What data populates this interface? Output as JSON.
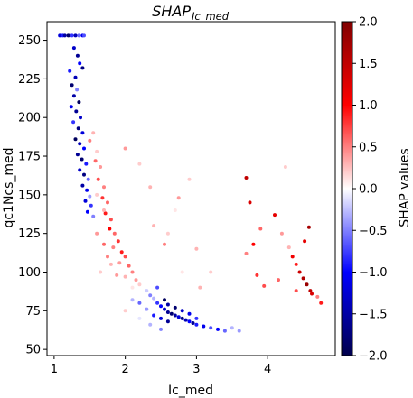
{
  "chart_data": {
    "type": "scatter",
    "title": "SHAP",
    "title_subscript": "Ic_med",
    "xlabel": "Ic_med",
    "ylabel": "qc1Ncs_med",
    "xlim": [
      0.9,
      4.95
    ],
    "ylim": [
      46,
      262
    ],
    "xticks": [
      1,
      2,
      3,
      4
    ],
    "yticks": [
      50,
      75,
      100,
      125,
      150,
      175,
      200,
      225,
      250
    ],
    "grid": false,
    "colorbar": {
      "label": "SHAP values",
      "range": [
        -2.0,
        2.0
      ],
      "ticks": [
        2.0,
        1.5,
        1.0,
        0.5,
        0.0,
        -0.5,
        -1.0,
        -1.5,
        -2.0
      ],
      "tick_labels": [
        "2.0",
        "1.5",
        "1.0",
        "0.5",
        "0.0",
        "−0.5",
        "−1.0",
        "−1.5",
        "−2.0"
      ],
      "colormap": "seismic",
      "colors": [
        "#00004c",
        "#0000ff",
        "#ffffff",
        "#ff0000",
        "#800000"
      ]
    },
    "point_count_note": "dense point cloud; representative points below (x, y, shap)",
    "points": [
      [
        1.08,
        253,
        -1.2
      ],
      [
        1.12,
        253,
        -0.9
      ],
      [
        1.15,
        253,
        -1.5
      ],
      [
        1.2,
        253,
        -1.8
      ],
      [
        1.25,
        253,
        -0.8
      ],
      [
        1.3,
        253,
        -1.4
      ],
      [
        1.35,
        253,
        -0.6
      ],
      [
        1.4,
        253,
        -1.1
      ],
      [
        1.42,
        253,
        -0.7
      ],
      [
        1.28,
        245,
        -1.3
      ],
      [
        1.33,
        240,
        -1.6
      ],
      [
        1.36,
        235,
        -1.0
      ],
      [
        1.4,
        232,
        -1.7
      ],
      [
        1.22,
        230,
        -0.9
      ],
      [
        1.3,
        226,
        -1.4
      ],
      [
        1.25,
        221,
        -1.8
      ],
      [
        1.32,
        218,
        -0.5
      ],
      [
        1.28,
        214,
        -1.5
      ],
      [
        1.35,
        210,
        -1.9
      ],
      [
        1.24,
        207,
        -1.1
      ],
      [
        1.31,
        204,
        -1.6
      ],
      [
        1.37,
        200,
        -1.3
      ],
      [
        1.27,
        197,
        -0.8
      ],
      [
        1.34,
        193,
        -1.7
      ],
      [
        1.4,
        190,
        -1.2
      ],
      [
        1.3,
        186,
        -1.9
      ],
      [
        1.36,
        183,
        -1.4
      ],
      [
        1.42,
        180,
        -1.0
      ],
      [
        1.33,
        176,
        -1.6
      ],
      [
        1.39,
        173,
        -1.8
      ],
      [
        1.45,
        170,
        -0.9
      ],
      [
        1.36,
        166,
        -1.3
      ],
      [
        1.42,
        163,
        -1.7
      ],
      [
        1.48,
        160,
        -0.6
      ],
      [
        1.4,
        156,
        -1.5
      ],
      [
        1.46,
        153,
        -1.1
      ],
      [
        1.5,
        149,
        -0.4
      ],
      [
        1.44,
        146,
        -1.2
      ],
      [
        1.52,
        143,
        -0.8
      ],
      [
        1.47,
        139,
        -1.0
      ],
      [
        1.55,
        136,
        -0.5
      ],
      [
        1.55,
        190,
        0.3
      ],
      [
        1.5,
        185,
        0.5
      ],
      [
        1.6,
        178,
        0.2
      ],
      [
        1.58,
        172,
        0.6
      ],
      [
        1.65,
        168,
        0.4
      ],
      [
        1.62,
        160,
        0.7
      ],
      [
        1.7,
        155,
        0.5
      ],
      [
        1.68,
        148,
        0.8
      ],
      [
        1.75,
        145,
        0.6
      ],
      [
        1.72,
        138,
        0.9
      ],
      [
        1.8,
        134,
        0.7
      ],
      [
        1.78,
        128,
        1.0
      ],
      [
        1.85,
        125,
        0.6
      ],
      [
        1.9,
        120,
        0.8
      ],
      [
        1.83,
        116,
        0.5
      ],
      [
        1.95,
        113,
        0.9
      ],
      [
        2.0,
        110,
        0.7
      ],
      [
        1.92,
        106,
        0.4
      ],
      [
        2.05,
        104,
        0.6
      ],
      [
        2.1,
        100,
        0.5
      ],
      [
        2.0,
        97,
        0.3
      ],
      [
        2.15,
        95,
        0.4
      ],
      [
        2.2,
        92,
        0.2
      ],
      [
        2.1,
        90,
        0.1
      ],
      [
        1.6,
        125,
        0.4
      ],
      [
        1.7,
        118,
        0.6
      ],
      [
        1.75,
        110,
        0.5
      ],
      [
        1.8,
        105,
        0.3
      ],
      [
        1.65,
        100,
        0.2
      ],
      [
        1.88,
        98,
        0.4
      ],
      [
        1.7,
        140,
        0.3
      ],
      [
        1.6,
        150,
        0.2
      ],
      [
        2.3,
        88,
        -0.2
      ],
      [
        2.35,
        85,
        -0.5
      ],
      [
        2.4,
        83,
        -0.3
      ],
      [
        2.45,
        80,
        -0.8
      ],
      [
        2.5,
        78,
        -1.0
      ],
      [
        2.55,
        76,
        -1.3
      ],
      [
        2.6,
        74,
        -1.6
      ],
      [
        2.65,
        73,
        -1.8
      ],
      [
        2.7,
        72,
        -1.5
      ],
      [
        2.75,
        71,
        -1.2
      ],
      [
        2.8,
        70,
        -1.7
      ],
      [
        2.85,
        69,
        -1.4
      ],
      [
        2.9,
        68,
        -1.0
      ],
      [
        2.95,
        67,
        -1.6
      ],
      [
        3.0,
        66,
        -0.9
      ],
      [
        3.1,
        65,
        -1.1
      ],
      [
        3.2,
        64,
        -0.7
      ],
      [
        3.3,
        63,
        -1.0
      ],
      [
        3.4,
        62,
        -0.6
      ],
      [
        2.55,
        82,
        -1.9
      ],
      [
        2.6,
        79,
        -1.5
      ],
      [
        2.7,
        77,
        -1.8
      ],
      [
        2.8,
        75,
        -1.3
      ],
      [
        2.5,
        70,
        -1.2
      ],
      [
        2.4,
        72,
        -0.9
      ],
      [
        2.6,
        68,
        -1.6
      ],
      [
        2.9,
        73,
        -1.1
      ],
      [
        3.0,
        70,
        -0.8
      ],
      [
        2.2,
        80,
        -0.6
      ],
      [
        2.3,
        76,
        -0.4
      ],
      [
        2.1,
        82,
        -0.3
      ],
      [
        2.45,
        90,
        -0.7
      ],
      [
        2.0,
        75,
        0.2
      ],
      [
        2.2,
        70,
        -0.1
      ],
      [
        2.35,
        66,
        -0.3
      ],
      [
        2.5,
        63,
        -0.5
      ],
      [
        3.6,
        62,
        -0.4
      ],
      [
        3.5,
        64,
        -0.3
      ],
      [
        3.7,
        161,
        1.5
      ],
      [
        3.75,
        145,
        1.3
      ],
      [
        3.8,
        118,
        1.0
      ],
      [
        3.85,
        98,
        0.8
      ],
      [
        3.9,
        128,
        0.6
      ],
      [
        3.95,
        91,
        0.7
      ],
      [
        3.7,
        112,
        0.5
      ],
      [
        4.1,
        137,
        1.2
      ],
      [
        4.15,
        95,
        0.6
      ],
      [
        4.2,
        125,
        0.4
      ],
      [
        4.25,
        168,
        0.2
      ],
      [
        4.3,
        116,
        0.3
      ],
      [
        4.35,
        110,
        1.1
      ],
      [
        4.4,
        105,
        0.9
      ],
      [
        4.45,
        100,
        1.4
      ],
      [
        4.5,
        96,
        1.6
      ],
      [
        4.55,
        92,
        1.8
      ],
      [
        4.6,
        88,
        1.5
      ],
      [
        4.52,
        120,
        1.2
      ],
      [
        4.58,
        129,
        1.7
      ],
      [
        4.62,
        86,
        1.3
      ],
      [
        4.7,
        84,
        0.5
      ],
      [
        4.75,
        80,
        0.9
      ],
      [
        4.4,
        88,
        0.7
      ],
      [
        3.2,
        100,
        0.2
      ],
      [
        3.0,
        115,
        0.3
      ],
      [
        2.6,
        125,
        0.2
      ],
      [
        2.7,
        140,
        0.1
      ],
      [
        2.9,
        160,
        0.2
      ],
      [
        2.75,
        148,
        0.4
      ],
      [
        2.4,
        130,
        0.3
      ],
      [
        2.55,
        118,
        0.5
      ],
      [
        2.8,
        100,
        0.1
      ],
      [
        3.05,
        90,
        0.3
      ],
      [
        2.0,
        180,
        0.4
      ],
      [
        2.2,
        170,
        0.2
      ],
      [
        2.35,
        155,
        0.3
      ]
    ]
  }
}
